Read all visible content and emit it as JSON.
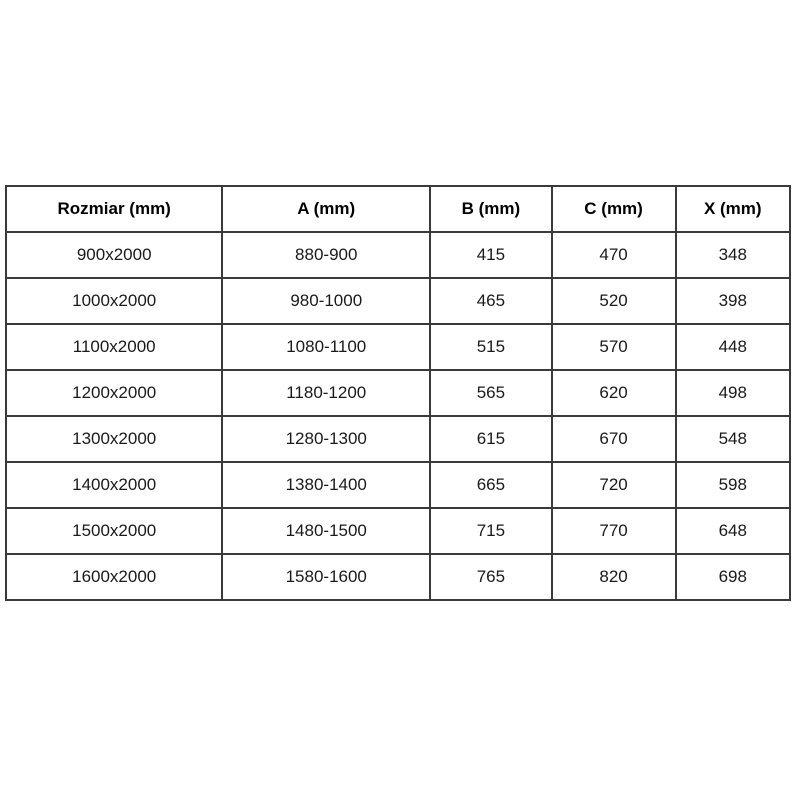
{
  "table": {
    "headers": [
      "Rozmiar (mm)",
      "A (mm)",
      "B (mm)",
      "C (mm)",
      "X (mm)"
    ],
    "rows": [
      [
        "900x2000",
        "880-900",
        "415",
        "470",
        "348"
      ],
      [
        "1000x2000",
        "980-1000",
        "465",
        "520",
        "398"
      ],
      [
        "1100x2000",
        "1080-1100",
        "515",
        "570",
        "448"
      ],
      [
        "1200x2000",
        "1180-1200",
        "565",
        "620",
        "498"
      ],
      [
        "1300x2000",
        "1280-1300",
        "615",
        "670",
        "548"
      ],
      [
        "1400x2000",
        "1380-1400",
        "665",
        "720",
        "598"
      ],
      [
        "1500x2000",
        "1480-1500",
        "715",
        "770",
        "648"
      ],
      [
        "1600x2000",
        "1580-1600",
        "765",
        "820",
        "698"
      ]
    ],
    "border_color": "#3a3a3a",
    "background_color": "#ffffff"
  }
}
